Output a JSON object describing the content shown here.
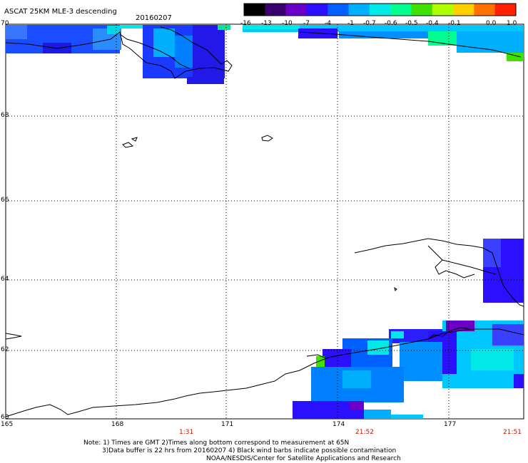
{
  "title": "ASCAT 25KM MLE-3 descending",
  "date": "20160207",
  "legend": {
    "tick_labels": [
      "-16",
      "-13",
      "-10",
      "-7",
      "-4",
      "-1",
      "-0.7",
      "-0.6",
      "-0.5",
      "-0.4",
      "-0.1",
      "0.0",
      "1.0"
    ],
    "colors": [
      "#000000",
      "#3a0070",
      "#6a00c8",
      "#2a10ff",
      "#0060ff",
      "#00b0ff",
      "#00e8e8",
      "#00ff90",
      "#40e000",
      "#b0ff00",
      "#ffd000",
      "#ff7000",
      "#ff2000"
    ]
  },
  "latitude_labels": [
    "70",
    "68",
    "66",
    "64",
    "62",
    "60"
  ],
  "longitude_labels": [
    "165",
    "168",
    "171",
    "174",
    "177"
  ],
  "time_labels": [
    "1:31",
    "21:52",
    "21:51"
  ],
  "notes": {
    "line1": "Note: 1) Times are GMT 2)Times along bottom correspond to measurement at 65N",
    "line2": "3)Data buffer is 22 hrs from 20160207 4) Black wind barbs indicate possible contamination",
    "line3": "NOAA/NESDIS/Center for Satellite Applications and Research"
  },
  "colors": {
    "coast": "#000000",
    "grid": "#000000",
    "time_text": "#cc1100"
  }
}
